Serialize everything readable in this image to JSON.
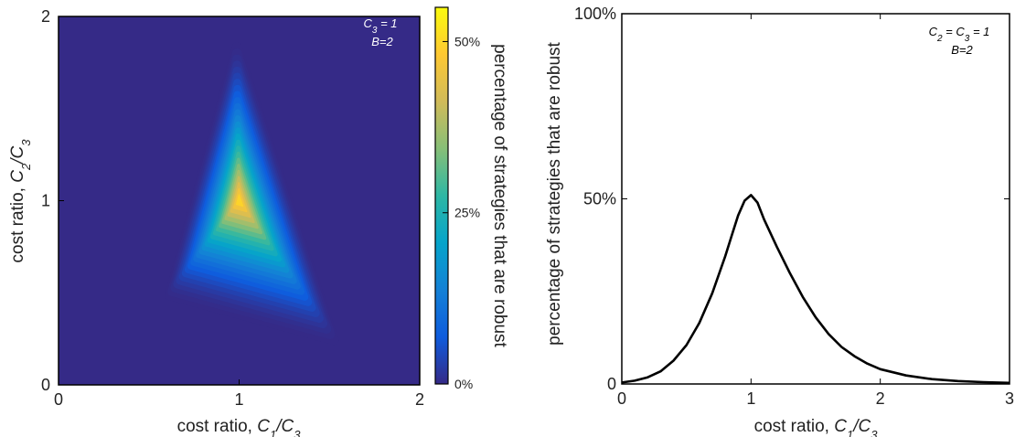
{
  "chart_data": [
    {
      "type": "heatmap",
      "xlabel": "cost ratio, C1/C3",
      "xlabel_parts": [
        "cost ratio, ",
        "C",
        "1",
        "/",
        "C",
        "3"
      ],
      "ylabel": "cost ratio, C2/C3",
      "ylabel_parts": [
        "cost ratio, ",
        "C",
        "2",
        "/",
        "C",
        "3"
      ],
      "xlim": [
        0,
        2
      ],
      "ylim": [
        0,
        2
      ],
      "xticks": [
        0,
        1,
        2
      ],
      "yticks": [
        0,
        1,
        2
      ],
      "peak": {
        "x": 1,
        "y": 1,
        "value": 53
      },
      "annotation": [
        "C3 = 1",
        "B=2"
      ],
      "annotation_parts": [
        [
          "C",
          "3",
          " = 1"
        ],
        [
          "B=2"
        ]
      ],
      "annotation_color": "#ffffff",
      "colorbar": {
        "label": "percentage of strategies that are robust",
        "range": [
          0,
          55
        ],
        "ticks": [
          0,
          25,
          50
        ],
        "tick_labels": [
          "0%",
          "25%",
          "50%"
        ],
        "colors": [
          "#352a87",
          "#0f5cdd",
          "#1481d6",
          "#06a4ca",
          "#2eb7a4",
          "#87bf77",
          "#d1bb59",
          "#fec832",
          "#f9fb0e"
        ]
      }
    },
    {
      "type": "line",
      "xlabel": "cost ratio, C1/C3",
      "xlabel_parts": [
        "cost ratio, ",
        "C",
        "1",
        "/",
        "C",
        "3"
      ],
      "ylabel": "percentage of strategies that are robust",
      "xlim": [
        0,
        3
      ],
      "ylim": [
        0,
        100
      ],
      "xticks": [
        0,
        1,
        2,
        3
      ],
      "yticks": [
        0,
        50,
        100
      ],
      "ytick_labels": [
        "0",
        "50%",
        "100%"
      ],
      "annotation": [
        "C2 = C3 = 1",
        "B=2"
      ],
      "annotation_parts": [
        [
          "C",
          "2",
          " = ",
          "C",
          "3",
          " = 1"
        ],
        [
          "B=2"
        ]
      ],
      "line_color": "#000000",
      "series": [
        {
          "x": [
            0,
            0.1,
            0.2,
            0.3,
            0.4,
            0.5,
            0.6,
            0.7,
            0.8,
            0.85,
            0.9,
            0.95,
            1.0,
            1.05,
            1.1,
            1.2,
            1.3,
            1.4,
            1.5,
            1.6,
            1.7,
            1.8,
            1.9,
            2.0,
            2.2,
            2.4,
            2.6,
            2.8,
            3.0
          ],
          "y": [
            0.4,
            0.9,
            1.8,
            3.4,
            6.3,
            10.5,
            16.5,
            24.5,
            34.5,
            40.0,
            45.5,
            49.5,
            51.0,
            49.0,
            44.5,
            37.0,
            30.0,
            23.5,
            18.0,
            13.5,
            10.0,
            7.5,
            5.5,
            4.0,
            2.3,
            1.3,
            0.8,
            0.5,
            0.3
          ]
        }
      ]
    }
  ]
}
